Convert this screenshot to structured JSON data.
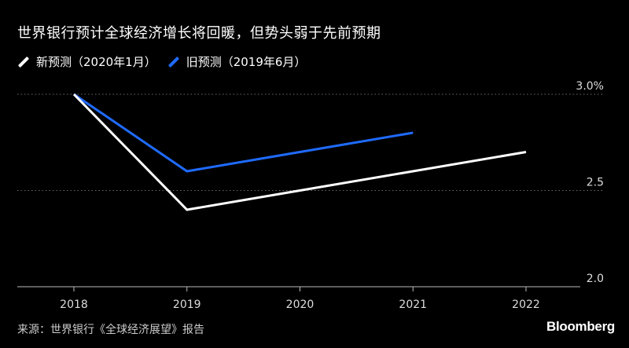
{
  "header": {
    "title": "世界银行预计全球经济增长将回暖，但势头弱于先前预期"
  },
  "legend": {
    "items": [
      {
        "label": "新预测（2020年1月）",
        "color": "#ffffff"
      },
      {
        "label": "旧预测（2019年6月）",
        "color": "#1f6bff"
      }
    ]
  },
  "chart_data": {
    "type": "line",
    "x": [
      2018,
      2019,
      2020,
      2021,
      2022
    ],
    "xlabel": "",
    "ylabel": "",
    "ylim": [
      2.0,
      3.0
    ],
    "x_ticks": [
      "2018",
      "2019",
      "2020",
      "2021",
      "2022"
    ],
    "y_ticks": [
      {
        "value": 3.0,
        "label": "3.0%"
      },
      {
        "value": 2.5,
        "label": "2.5"
      },
      {
        "value": 2.0,
        "label": "2.0"
      }
    ],
    "grid": "horizontal dotted",
    "y_axis_position": "right",
    "series": [
      {
        "name": "新预测（2020年1月）",
        "color": "#ffffff",
        "x": [
          2018,
          2019,
          2020,
          2021,
          2022
        ],
        "values": [
          3.0,
          2.4,
          2.5,
          2.6,
          2.7
        ]
      },
      {
        "name": "旧预测（2019年6月）",
        "color": "#1f6bff",
        "x": [
          2018,
          2019,
          2020,
          2021
        ],
        "values": [
          3.0,
          2.6,
          2.7,
          2.8
        ]
      }
    ]
  },
  "footer": {
    "source": "来源：世界银行《全球经济展望》报告",
    "brand": "Bloomberg"
  }
}
